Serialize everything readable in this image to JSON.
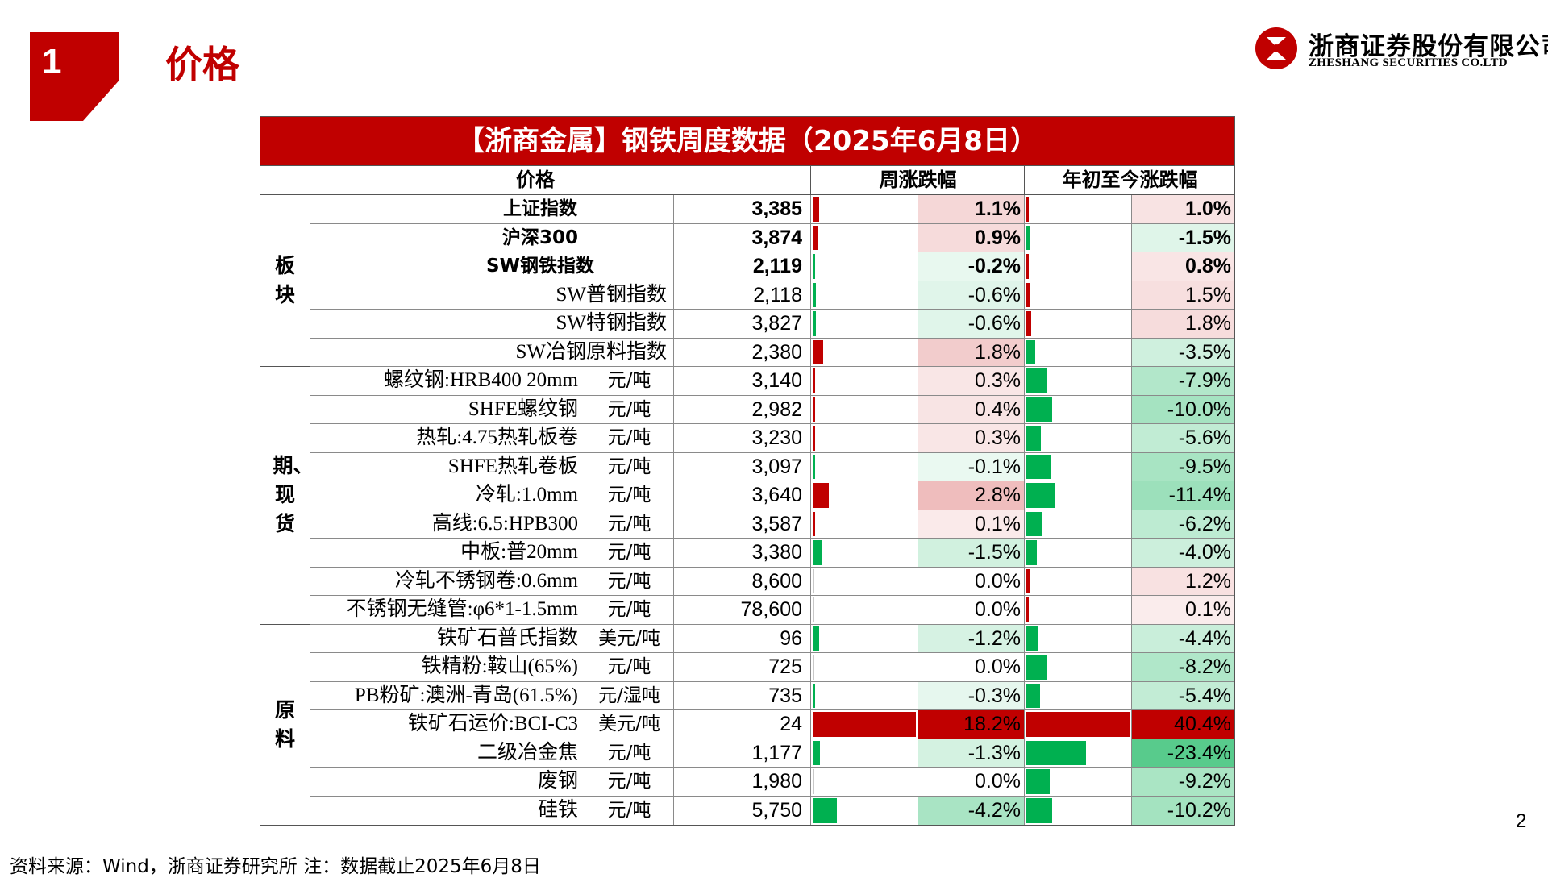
{
  "section": {
    "number": "1",
    "title": "价格"
  },
  "logo": {
    "name_cn": "浙商证券股份有限公司",
    "name_en": "ZHESHANG SECURITIES CO.LTD"
  },
  "table": {
    "title": "【浙商金属】钢铁周度数据（2025年6月8日）",
    "headers": {
      "price": "价格",
      "weekly": "周涨跌幅",
      "ytd": "年初至今涨跌幅"
    },
    "categories": [
      {
        "label": "板块",
        "rows": 6
      },
      {
        "label": "期、现货",
        "rows": 9
      },
      {
        "label": "原料",
        "rows": 7
      }
    ],
    "rows": [
      {
        "name": "上证指数",
        "unit": "",
        "value": "3,385",
        "weekly": 1.1,
        "weekly_text": "1.1%",
        "ytd": 1.0,
        "ytd_text": "1.0%",
        "bold": true
      },
      {
        "name": "沪深300",
        "unit": "",
        "value": "3,874",
        "weekly": 0.9,
        "weekly_text": "0.9%",
        "ytd": -1.5,
        "ytd_text": "-1.5%",
        "bold": true
      },
      {
        "name": "SW钢铁指数",
        "unit": "",
        "value": "2,119",
        "weekly": -0.2,
        "weekly_text": "-0.2%",
        "ytd": 0.8,
        "ytd_text": "0.8%",
        "bold": true
      },
      {
        "name": "SW普钢指数",
        "unit": "",
        "value": "2,118",
        "weekly": -0.6,
        "weekly_text": "-0.6%",
        "ytd": 1.5,
        "ytd_text": "1.5%",
        "bold": false
      },
      {
        "name": "SW特钢指数",
        "unit": "",
        "value": "3,827",
        "weekly": -0.6,
        "weekly_text": "-0.6%",
        "ytd": 1.8,
        "ytd_text": "1.8%",
        "bold": false
      },
      {
        "name": "SW冶钢原料指数",
        "unit": "",
        "value": "2,380",
        "weekly": 1.8,
        "weekly_text": "1.8%",
        "ytd": -3.5,
        "ytd_text": "-3.5%",
        "bold": false
      },
      {
        "name": "螺纹钢:HRB400 20mm",
        "unit": "元/吨",
        "value": "3,140",
        "weekly": 0.3,
        "weekly_text": "0.3%",
        "ytd": -7.9,
        "ytd_text": "-7.9%",
        "bold": false
      },
      {
        "name": "SHFE螺纹钢",
        "unit": "元/吨",
        "value": "2,982",
        "weekly": 0.4,
        "weekly_text": "0.4%",
        "ytd": -10.0,
        "ytd_text": "-10.0%",
        "bold": false
      },
      {
        "name": "热轧:4.75热轧板卷",
        "unit": "元/吨",
        "value": "3,230",
        "weekly": 0.3,
        "weekly_text": "0.3%",
        "ytd": -5.6,
        "ytd_text": "-5.6%",
        "bold": false
      },
      {
        "name": "SHFE热轧卷板",
        "unit": "元/吨",
        "value": "3,097",
        "weekly": -0.1,
        "weekly_text": "-0.1%",
        "ytd": -9.5,
        "ytd_text": "-9.5%",
        "bold": false
      },
      {
        "name": "冷轧:1.0mm",
        "unit": "元/吨",
        "value": "3,640",
        "weekly": 2.8,
        "weekly_text": "2.8%",
        "ytd": -11.4,
        "ytd_text": "-11.4%",
        "bold": false
      },
      {
        "name": "高线:6.5:HPB300",
        "unit": "元/吨",
        "value": "3,587",
        "weekly": 0.1,
        "weekly_text": "0.1%",
        "ytd": -6.2,
        "ytd_text": "-6.2%",
        "bold": false
      },
      {
        "name": "中板:普20mm",
        "unit": "元/吨",
        "value": "3,380",
        "weekly": -1.5,
        "weekly_text": "-1.5%",
        "ytd": -4.0,
        "ytd_text": "-4.0%",
        "bold": false
      },
      {
        "name": "冷轧不锈钢卷:0.6mm",
        "unit": "元/吨",
        "value": "8,600",
        "weekly": 0.0,
        "weekly_text": "0.0%",
        "ytd": 1.2,
        "ytd_text": "1.2%",
        "bold": false
      },
      {
        "name": "不锈钢无缝管:φ6*1-1.5mm",
        "unit": "元/吨",
        "value": "78,600",
        "weekly": 0.0,
        "weekly_text": "0.0%",
        "ytd": 0.1,
        "ytd_text": "0.1%",
        "bold": false
      },
      {
        "name": "铁矿石普氏指数",
        "unit": "美元/吨",
        "value": "96",
        "weekly": -1.2,
        "weekly_text": "-1.2%",
        "ytd": -4.4,
        "ytd_text": "-4.4%",
        "bold": false
      },
      {
        "name": "铁精粉:鞍山(65%)",
        "unit": "元/吨",
        "value": "725",
        "weekly": 0.0,
        "weekly_text": "0.0%",
        "ytd": -8.2,
        "ytd_text": "-8.2%",
        "bold": false
      },
      {
        "name": "PB粉矿:澳洲-青岛(61.5%)",
        "unit": "元/湿吨",
        "value": "735",
        "weekly": -0.3,
        "weekly_text": "-0.3%",
        "ytd": -5.4,
        "ytd_text": "-5.4%",
        "bold": false
      },
      {
        "name": "铁矿石运价:BCI-C3",
        "unit": "美元/吨",
        "value": "24",
        "weekly": 18.2,
        "weekly_text": "18.2%",
        "ytd": 40.4,
        "ytd_text": "40.4%",
        "bold": false
      },
      {
        "name": "二级冶金焦",
        "unit": "元/吨",
        "value": "1,177",
        "weekly": -1.3,
        "weekly_text": "-1.3%",
        "ytd": -23.4,
        "ytd_text": "-23.4%",
        "bold": false
      },
      {
        "name": "废钢",
        "unit": "元/吨",
        "value": "1,980",
        "weekly": 0.0,
        "weekly_text": "0.0%",
        "ytd": -9.2,
        "ytd_text": "-9.2%",
        "bold": false
      },
      {
        "name": "硅铁",
        "unit": "元/吨",
        "value": "5,750",
        "weekly": -4.2,
        "weekly_text": "-4.2%",
        "ytd": -10.2,
        "ytd_text": "-10.2%",
        "bold": false
      }
    ]
  },
  "colors": {
    "brand_red": "#C00000",
    "up_red": "#C00000",
    "down_green": "#00B050"
  },
  "footer": {
    "source": "资料来源：Wind，浙商证券研究所    注：数据截止2025年6月8日"
  },
  "page_number": "2"
}
